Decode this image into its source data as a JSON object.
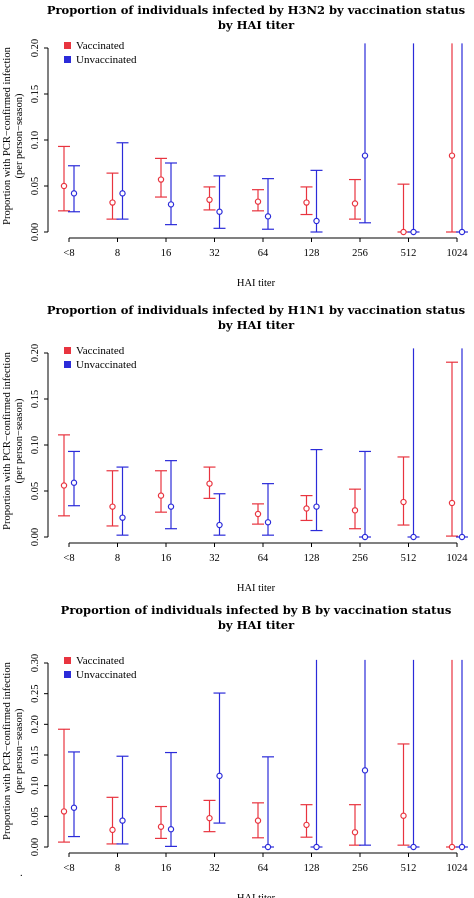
{
  "colors": {
    "vaccinated": "#e8343f",
    "unvaccinated": "#2b2bd9"
  },
  "chart_data": [
    {
      "type": "scatter",
      "title": "Proportion of individuals infected by H3N2 by vaccination status",
      "subtitle": "by HAI titer",
      "xlabel": "HAI titer",
      "ylabel": "Proportion with PCR−confirmed infection",
      "ylabel2": "(per person−season)",
      "categories": [
        "<8",
        "8",
        "16",
        "32",
        "64",
        "128",
        "256",
        "512",
        "1024"
      ],
      "ylim": [
        0,
        0.2
      ],
      "yticks": [
        "0.00",
        "0.05",
        "0.10",
        "0.15",
        "0.20"
      ],
      "legend_position": "top-left",
      "series": [
        {
          "name": "Vaccinated",
          "color_key": "vaccinated",
          "values": [
            0.05,
            0.032,
            0.057,
            0.035,
            0.033,
            0.032,
            0.031,
            0.0,
            0.083
          ],
          "lower": [
            0.023,
            0.014,
            0.038,
            0.024,
            0.023,
            0.019,
            0.014,
            0.0,
            0.0
          ],
          "upper": [
            0.093,
            0.064,
            0.08,
            0.049,
            0.046,
            0.049,
            0.057,
            0.052,
            0.21
          ]
        },
        {
          "name": "Unvaccinated",
          "color_key": "unvaccinated",
          "values": [
            0.042,
            0.042,
            0.03,
            0.022,
            0.017,
            0.012,
            0.083,
            0.0,
            0.0
          ],
          "lower": [
            0.022,
            0.014,
            0.008,
            0.004,
            0.003,
            0.0,
            0.01,
            0.0,
            0.0
          ],
          "upper": [
            0.072,
            0.097,
            0.075,
            0.061,
            0.058,
            0.067,
            0.21,
            0.21,
            0.21
          ]
        }
      ]
    },
    {
      "type": "scatter",
      "title": "Proportion of individuals infected by H1N1 by vaccination status",
      "subtitle": "by HAI titer",
      "xlabel": "HAI titer",
      "ylabel": "Proportion with PCR−confirmed infection",
      "ylabel2": "(per person−season)",
      "categories": [
        "<8",
        "8",
        "16",
        "32",
        "64",
        "128",
        "256",
        "512",
        "1024"
      ],
      "ylim": [
        0,
        0.2
      ],
      "yticks": [
        "0.00",
        "0.05",
        "0.10",
        "0.15",
        "0.20"
      ],
      "legend_position": "top-left",
      "series": [
        {
          "name": "Vaccinated",
          "color_key": "vaccinated",
          "values": [
            0.056,
            0.033,
            0.045,
            0.058,
            0.025,
            0.031,
            0.029,
            0.038,
            0.037
          ],
          "lower": [
            0.023,
            0.012,
            0.027,
            0.042,
            0.014,
            0.018,
            0.009,
            0.013,
            0.001
          ],
          "upper": [
            0.111,
            0.072,
            0.072,
            0.076,
            0.036,
            0.045,
            0.052,
            0.087,
            0.19
          ]
        },
        {
          "name": "Unvaccinated",
          "color_key": "unvaccinated",
          "values": [
            0.059,
            0.021,
            0.033,
            0.013,
            0.016,
            0.033,
            0.0,
            0.0,
            0.0
          ],
          "lower": [
            0.034,
            0.002,
            0.009,
            0.002,
            0.002,
            0.007,
            0.0,
            0.0,
            0.0
          ],
          "upper": [
            0.093,
            0.076,
            0.083,
            0.047,
            0.058,
            0.095,
            0.093,
            0.21,
            0.21
          ]
        }
      ]
    },
    {
      "type": "scatter",
      "title": "Proportion of individuals infected by B by vaccination status",
      "subtitle": "by HAI titer",
      "xlabel": "HAI titer",
      "ylabel": "Proportion with PCR−confirmed infection",
      "ylabel2": "(per person−season)",
      "categories": [
        "<8",
        "8",
        "16",
        "32",
        "64",
        "128",
        "256",
        "512",
        "1024"
      ],
      "ylim": [
        0,
        0.3
      ],
      "yticks": [
        "0.00",
        "0.05",
        "0.10",
        "0.15",
        "0.20",
        "0.25",
        "0.30"
      ],
      "legend_position": "top-left",
      "series": [
        {
          "name": "Vaccinated",
          "color_key": "vaccinated",
          "values": [
            0.058,
            0.028,
            0.033,
            0.047,
            0.043,
            0.036,
            0.024,
            0.051,
            0.0
          ],
          "lower": [
            0.008,
            0.005,
            0.014,
            0.025,
            0.015,
            0.016,
            0.003,
            0.003,
            0.0
          ],
          "upper": [
            0.192,
            0.081,
            0.066,
            0.076,
            0.072,
            0.069,
            0.069,
            0.168,
            0.31
          ]
        },
        {
          "name": "Unvaccinated",
          "color_key": "unvaccinated",
          "values": [
            0.064,
            0.043,
            0.029,
            0.116,
            0.0,
            0.0,
            0.125,
            0.0,
            0.0
          ],
          "lower": [
            0.017,
            0.005,
            0.001,
            0.039,
            0.0,
            0.0,
            0.003,
            0.0,
            0.0
          ],
          "upper": [
            0.155,
            0.148,
            0.154,
            0.251,
            0.147,
            0.31,
            0.31,
            0.31,
            0.31
          ]
        }
      ]
    }
  ],
  "footnote": "."
}
